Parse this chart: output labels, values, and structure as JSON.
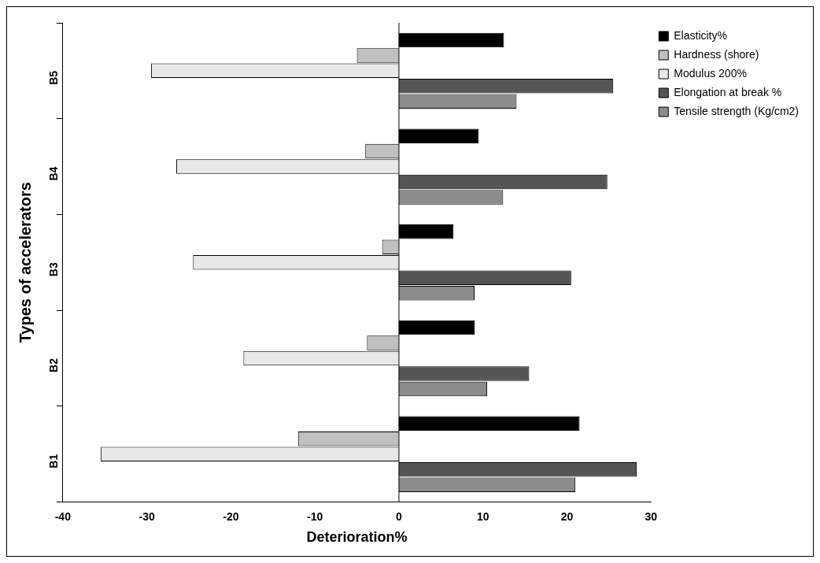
{
  "chart_data": {
    "type": "bar",
    "orientation": "horizontal",
    "xlabel": "Deterioration%",
    "ylabel": "Types of accelerators",
    "categories": [
      "B5",
      "B4",
      "B3",
      "B2",
      "B1"
    ],
    "series": [
      {
        "name": "Elasticity%",
        "color": "#000000",
        "values": [
          12.5,
          9.5,
          6.5,
          9,
          21.5
        ]
      },
      {
        "name": "Hardness (shore)",
        "color": "#c0c0c0",
        "values": [
          -5,
          -4,
          -2,
          -3.8,
          -12
        ]
      },
      {
        "name": "Modulus 200%",
        "color": "#e8e8e8",
        "values": [
          -29.5,
          -26.5,
          -24.5,
          -18.5,
          -35.5
        ]
      },
      {
        "name": "Elongation at break %",
        "color": "#555555",
        "values": [
          25.5,
          24.8,
          20.5,
          15.5,
          28.3
        ]
      },
      {
        "name": "Tensile strength (Kg/cm2)",
        "color": "#8c8c8c",
        "values": [
          14,
          12.4,
          9,
          10.5,
          21
        ]
      }
    ],
    "ref_lines": [
      {
        "axis": "x",
        "value": 0
      }
    ],
    "xlim": [
      -40,
      30
    ],
    "xticks": [
      -40,
      -30,
      -20,
      -10,
      0,
      10,
      20,
      30
    ],
    "grid": false,
    "legend": "top right"
  }
}
